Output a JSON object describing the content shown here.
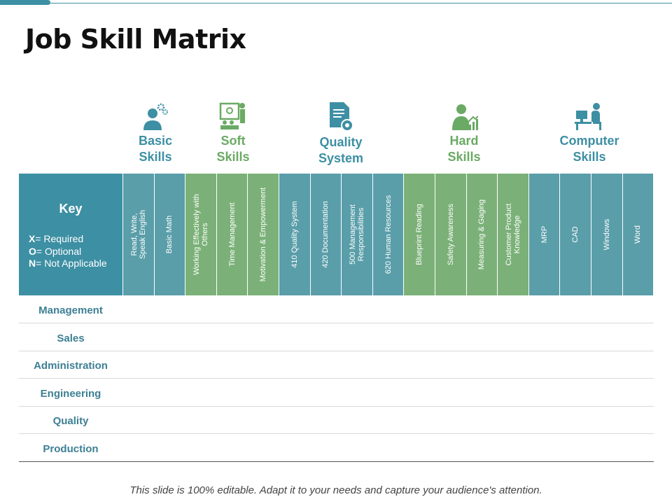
{
  "title": "Job Skill Matrix",
  "categories": [
    {
      "label": "Basic\nSkills",
      "icon": "person-gears-icon",
      "color": "#3d8fa3"
    },
    {
      "label": "Soft\nSkills",
      "icon": "presentation-board-icon",
      "color": "#6aaa64"
    },
    {
      "label": "Quality\nSystem",
      "icon": "document-gear-icon",
      "color": "#3d8fa3"
    },
    {
      "label": "Hard\nSkills",
      "icon": "person-growth-chart-icon",
      "color": "#6aaa64"
    },
    {
      "label": "Computer\nSkills",
      "icon": "person-at-computer-icon",
      "color": "#3d8fa3"
    }
  ],
  "key": {
    "title": "Key",
    "items": [
      {
        "code": "X",
        "text": "= Required"
      },
      {
        "code": "O",
        "text": "= Optional"
      },
      {
        "code": "N",
        "text": "= Not Applicable"
      }
    ]
  },
  "columns": [
    {
      "label": "Read, Write,\nSpeak English",
      "group": "teal"
    },
    {
      "label": "Basic Math",
      "group": "teal"
    },
    {
      "label": "Working Effectively with\nOthers",
      "group": "green"
    },
    {
      "label": "Time Management",
      "group": "green"
    },
    {
      "label": "Motivation & Empowerment",
      "group": "green"
    },
    {
      "label": "410 Quality System",
      "group": "teal"
    },
    {
      "label": "420 Documentation",
      "group": "teal"
    },
    {
      "label": "500 Management\nResponsibilities",
      "group": "teal"
    },
    {
      "label": "620 Human Resources",
      "group": "teal"
    },
    {
      "label": "Blueprint Reading",
      "group": "green"
    },
    {
      "label": "Safety Awareness",
      "group": "green"
    },
    {
      "label": "Measuring & Gaging",
      "group": "green"
    },
    {
      "label": "Customer Product\nKnowledge",
      "group": "green"
    },
    {
      "label": "MRP",
      "group": "teal"
    },
    {
      "label": "CAD",
      "group": "teal"
    },
    {
      "label": "Windows",
      "group": "teal"
    },
    {
      "label": "Word",
      "group": "teal"
    }
  ],
  "rows": [
    "Management",
    "Sales",
    "Administration",
    "Engineering",
    "Quality",
    "Production"
  ],
  "footer": "This slide is 100% editable. Adapt it to your needs and capture your audience's attention."
}
